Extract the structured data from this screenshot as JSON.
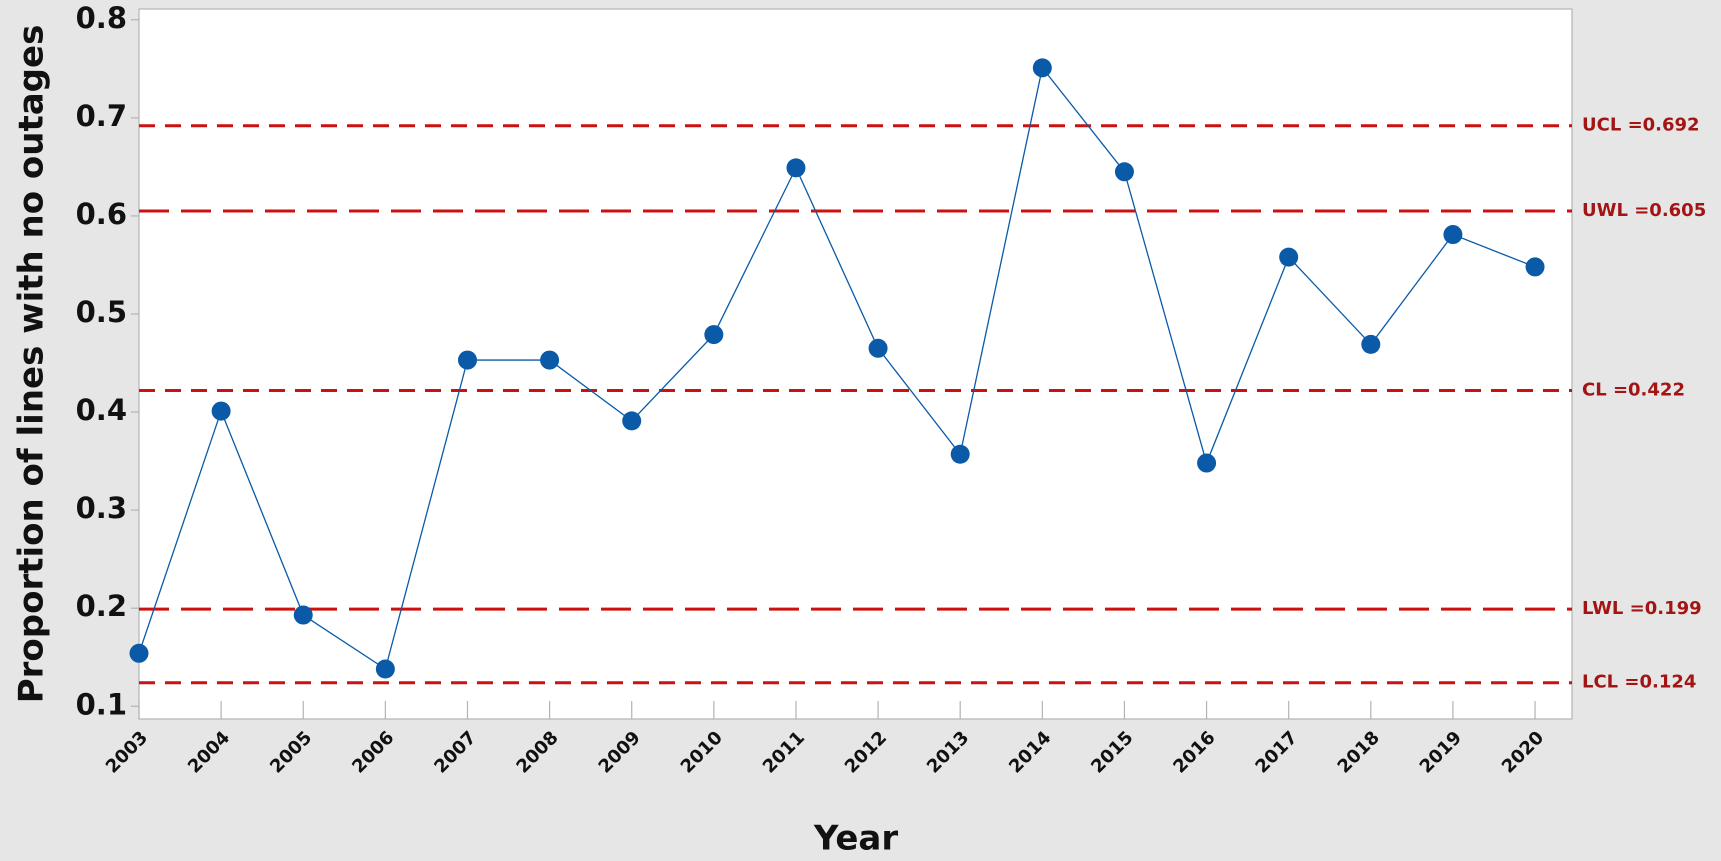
{
  "chart_data": {
    "type": "line",
    "x": [
      2003,
      2004,
      2005,
      2006,
      2007,
      2008,
      2009,
      2010,
      2011,
      2012,
      2013,
      2014,
      2015,
      2016,
      2017,
      2018,
      2019,
      2020
    ],
    "values": [
      0.154,
      0.401,
      0.193,
      0.138,
      0.453,
      0.453,
      0.391,
      0.479,
      0.649,
      0.465,
      0.357,
      0.751,
      0.645,
      0.348,
      0.558,
      0.469,
      0.581,
      0.548
    ],
    "color": "#0a5aa8",
    "xlim": [
      2003,
      2020.45
    ],
    "xticks": [
      2003,
      2004,
      2005,
      2006,
      2007,
      2008,
      2009,
      2010,
      2011,
      2012,
      2013,
      2014,
      2015,
      2016,
      2017,
      2018,
      2019,
      2020
    ],
    "ylim": [
      0.087,
      0.811
    ],
    "yticks": [
      0.1,
      0.2,
      0.3,
      0.4,
      0.5,
      0.6,
      0.7,
      0.8
    ],
    "xlabel": "Year",
    "ylabel": "Proportion of lines with no outages",
    "reference_color": "#cc1111",
    "reference_label_color": "#a31515",
    "reference_lines": [
      {
        "value": 0.692,
        "label": "UCL =0.692",
        "dash": "short"
      },
      {
        "value": 0.605,
        "label": "UWL =0.605",
        "dash": "long"
      },
      {
        "value": 0.422,
        "label": "CL =0.422",
        "dash": "short"
      },
      {
        "value": 0.199,
        "label": "LWL =0.199",
        "dash": "long"
      },
      {
        "value": 0.124,
        "label": "LCL =0.124",
        "dash": "short"
      }
    ]
  }
}
